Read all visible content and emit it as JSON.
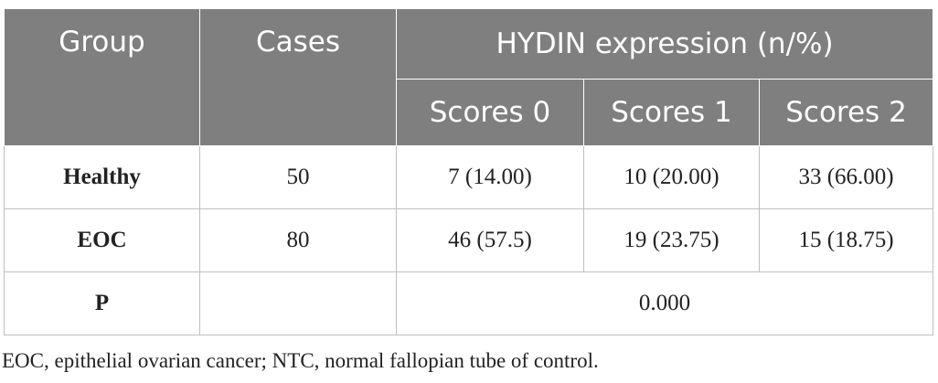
{
  "table": {
    "header": {
      "group": "Group",
      "cases": "Cases",
      "expression": "HYDIN expression (n/%)",
      "scores": [
        "Scores 0",
        "Scores 1",
        "Scores 2"
      ]
    },
    "rows": [
      {
        "group": "Healthy",
        "cases": "50",
        "s0": "7 (14.00)",
        "s1": "10 (20.00)",
        "s2": "33 (66.00)"
      },
      {
        "group": "EOC",
        "cases": "80",
        "s0": "46 (57.5)",
        "s1": "19 (23.75)",
        "s2": "15 (18.75)"
      }
    ],
    "p_row": {
      "label": "P",
      "cases": "",
      "value": "0.000"
    }
  },
  "footnote": "EOC, epithelial ovarian cancer; NTC, normal fallopian tube of control.",
  "colors": {
    "header_bg": "#7f7f7f",
    "header_text": "#ffffff",
    "border": "#bfbfbf"
  }
}
